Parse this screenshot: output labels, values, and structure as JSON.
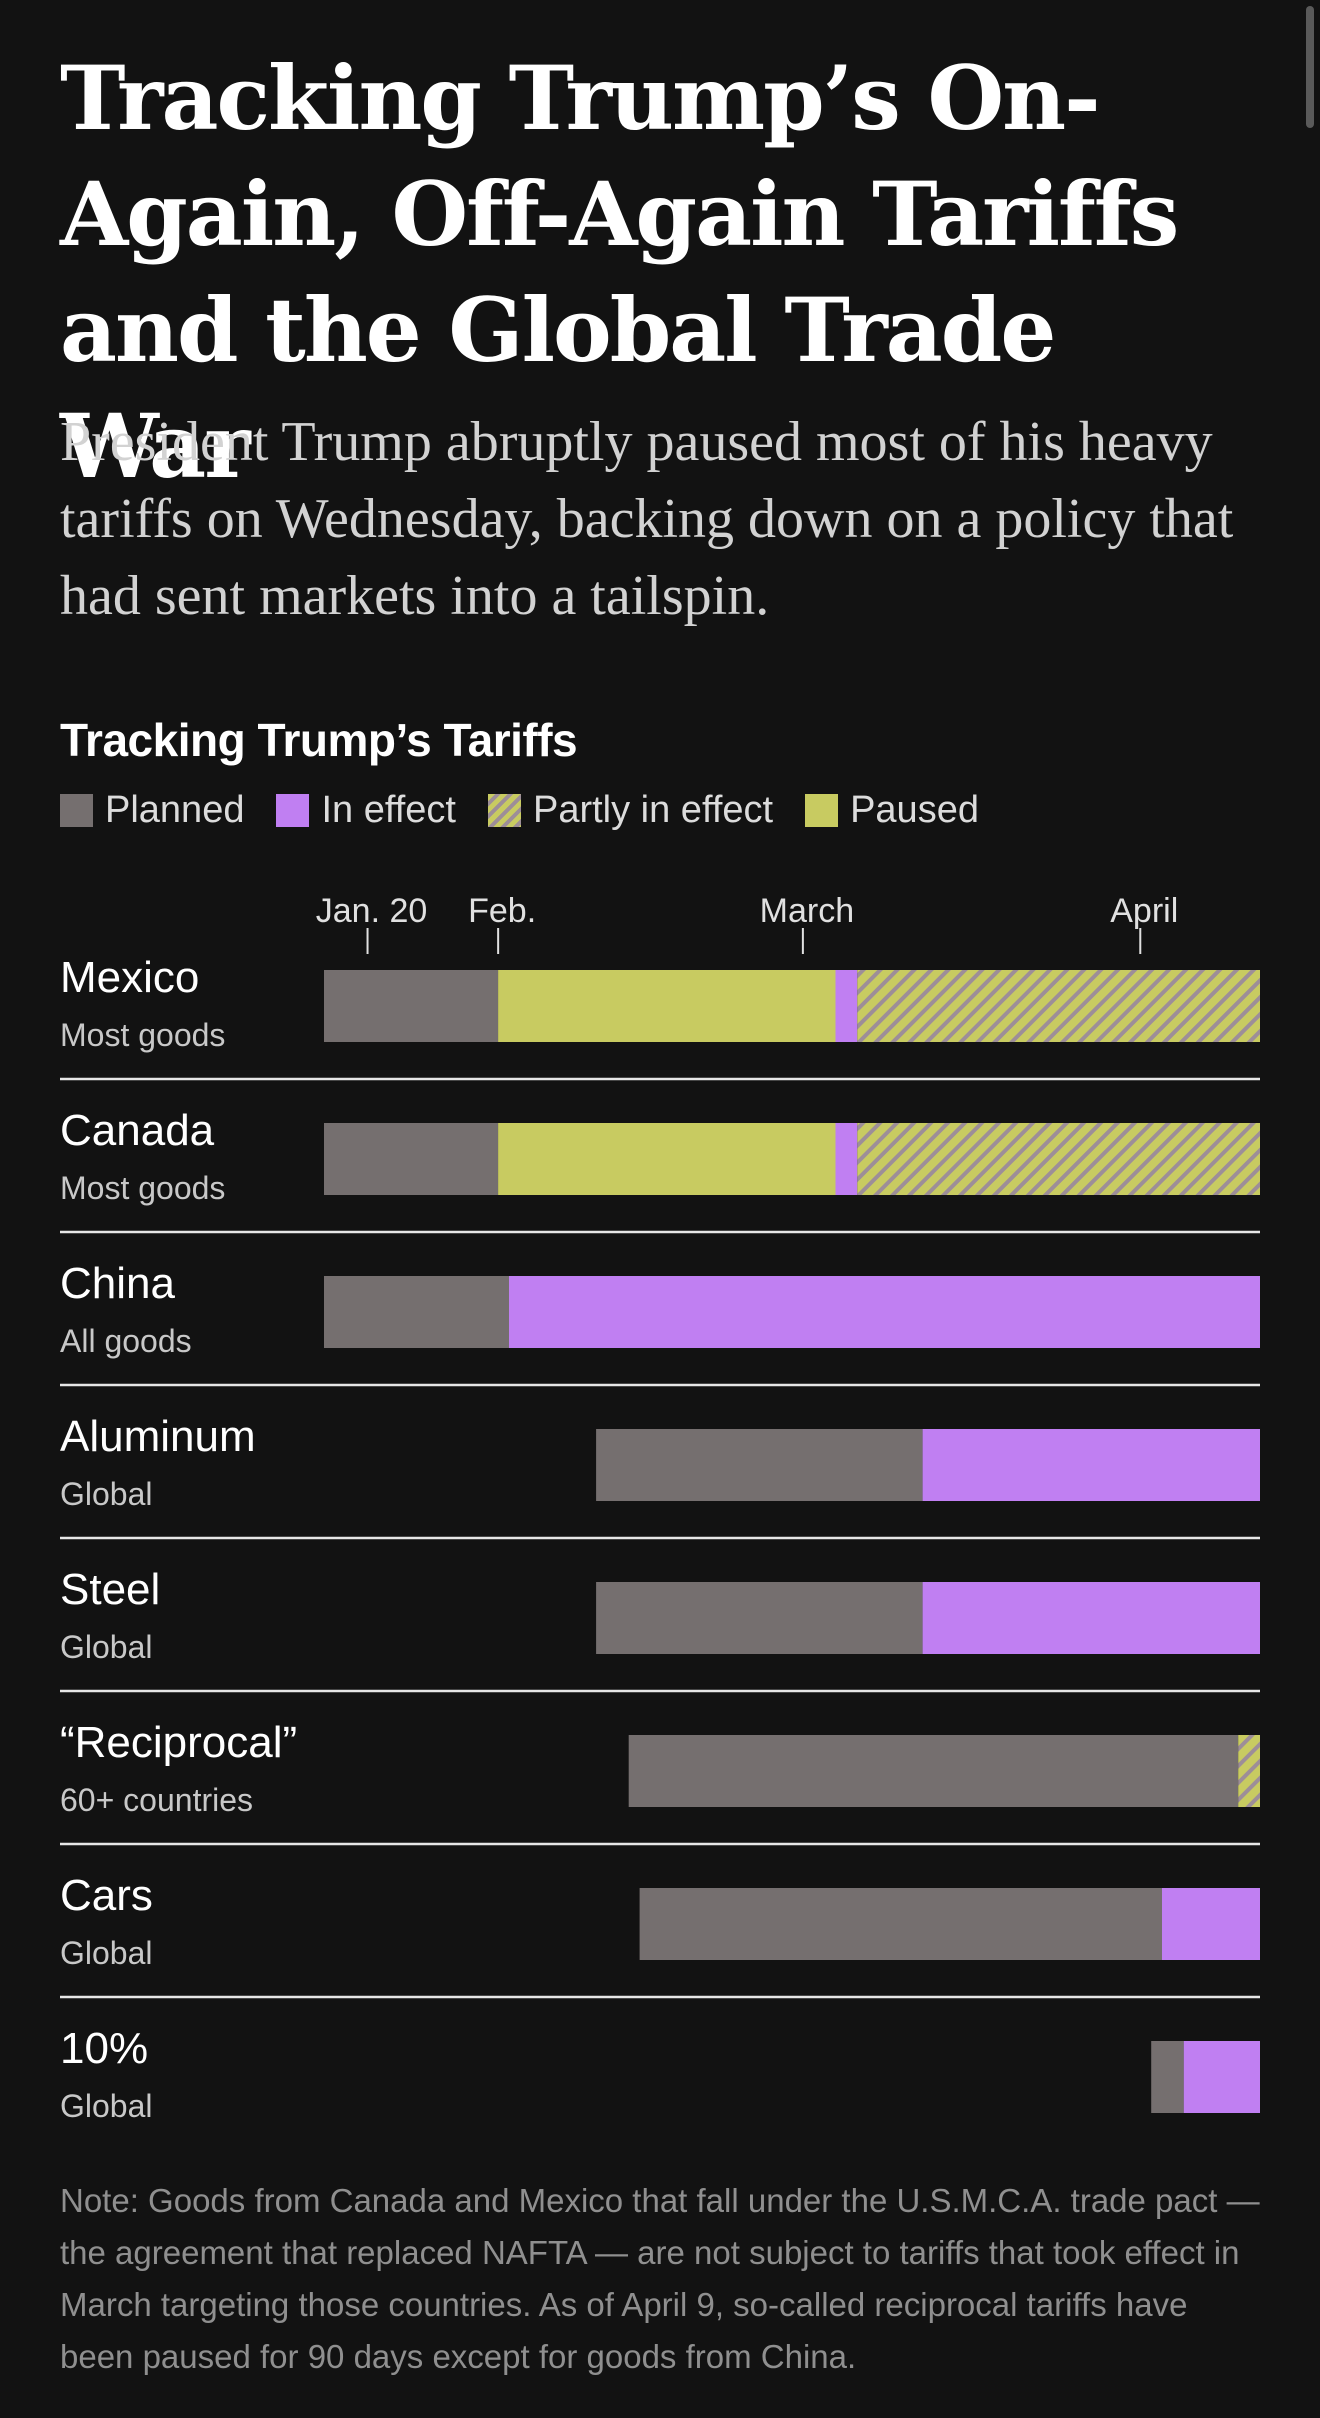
{
  "headline": "Tracking Trump’s On-Again, Off-Again Tariffs and the Global Trade War",
  "dek": "President Trump abruptly paused most of his heavy tariffs on Wednesday, backing down on a policy that had sent markets into a tailspin.",
  "note": "Note: Goods from Canada and Mexico that fall under the U.S.M.C.A. trade pact — the agreement that replaced NAFTA — are not subject to tariffs that took effect in March targeting those countries. As of April 9, so-called reciprocal tariffs have been paused for 90 days except for goods from China.",
  "colors": {
    "background": "#121212",
    "planned": "#756f6f",
    "in_effect": "#c07ff2",
    "paused": "#c8cb61",
    "partly_stripe": "#9d8e98",
    "divider": "#e6e6e6"
  },
  "chart_data": {
    "type": "bar",
    "subtype": "horizontal-timeline",
    "title": "Tracking Trump’s Tariffs",
    "legend": [
      {
        "key": "planned",
        "label": "Planned",
        "color": "#756f6f"
      },
      {
        "key": "in_effect",
        "label": "In effect",
        "color": "#c07ff2"
      },
      {
        "key": "partly",
        "label": "Partly in effect",
        "color": "#c8cb61"
      },
      {
        "key": "paused",
        "label": "Paused",
        "color": "#c8cb61"
      }
    ],
    "legend_position": "top-left",
    "x_axis": {
      "type": "date",
      "range": [
        "2025-01-16",
        "2025-04-12"
      ],
      "ticks": [
        {
          "date": "2025-01-20",
          "label": "Jan. 20"
        },
        {
          "date": "2025-02-01",
          "label": "Feb."
        },
        {
          "date": "2025-03-01",
          "label": "March"
        },
        {
          "date": "2025-04-01",
          "label": "April"
        }
      ]
    },
    "grid": false,
    "rows": [
      {
        "name": "Mexico",
        "sub": "Most goods",
        "segments": [
          {
            "status": "planned",
            "start": "2025-01-16",
            "end": "2025-02-01"
          },
          {
            "status": "paused",
            "start": "2025-02-01",
            "end": "2025-03-04"
          },
          {
            "status": "in_effect",
            "start": "2025-03-04",
            "end": "2025-03-06"
          },
          {
            "status": "partly",
            "start": "2025-03-06",
            "end": "2025-04-12"
          }
        ]
      },
      {
        "name": "Canada",
        "sub": "Most goods",
        "segments": [
          {
            "status": "planned",
            "start": "2025-01-16",
            "end": "2025-02-01"
          },
          {
            "status": "paused",
            "start": "2025-02-01",
            "end": "2025-03-04"
          },
          {
            "status": "in_effect",
            "start": "2025-03-04",
            "end": "2025-03-06"
          },
          {
            "status": "partly",
            "start": "2025-03-06",
            "end": "2025-04-12"
          }
        ]
      },
      {
        "name": "China",
        "sub": "All goods",
        "segments": [
          {
            "status": "planned",
            "start": "2025-01-16",
            "end": "2025-02-02"
          },
          {
            "status": "in_effect",
            "start": "2025-02-02",
            "end": "2025-04-12"
          }
        ]
      },
      {
        "name": "Aluminum",
        "sub": "Global",
        "segments": [
          {
            "status": "planned",
            "start": "2025-02-10",
            "end": "2025-03-12"
          },
          {
            "status": "in_effect",
            "start": "2025-03-12",
            "end": "2025-04-12"
          }
        ]
      },
      {
        "name": "Steel",
        "sub": "Global",
        "segments": [
          {
            "status": "planned",
            "start": "2025-02-10",
            "end": "2025-03-12"
          },
          {
            "status": "in_effect",
            "start": "2025-03-12",
            "end": "2025-04-12"
          }
        ]
      },
      {
        "name": "“Reciprocal”",
        "sub": "60+ countries",
        "segments": [
          {
            "status": "planned",
            "start": "2025-02-13",
            "end": "2025-04-10"
          },
          {
            "status": "partly",
            "start": "2025-04-10",
            "end": "2025-04-12"
          }
        ]
      },
      {
        "name": "Cars",
        "sub": "Global",
        "segments": [
          {
            "status": "planned",
            "start": "2025-02-14",
            "end": "2025-04-03"
          },
          {
            "status": "in_effect",
            "start": "2025-04-03",
            "end": "2025-04-12"
          }
        ]
      },
      {
        "name": "10%",
        "sub": "Global",
        "segments": [
          {
            "status": "planned",
            "start": "2025-04-02",
            "end": "2025-04-05"
          },
          {
            "status": "in_effect",
            "start": "2025-04-05",
            "end": "2025-04-12"
          }
        ]
      }
    ]
  }
}
